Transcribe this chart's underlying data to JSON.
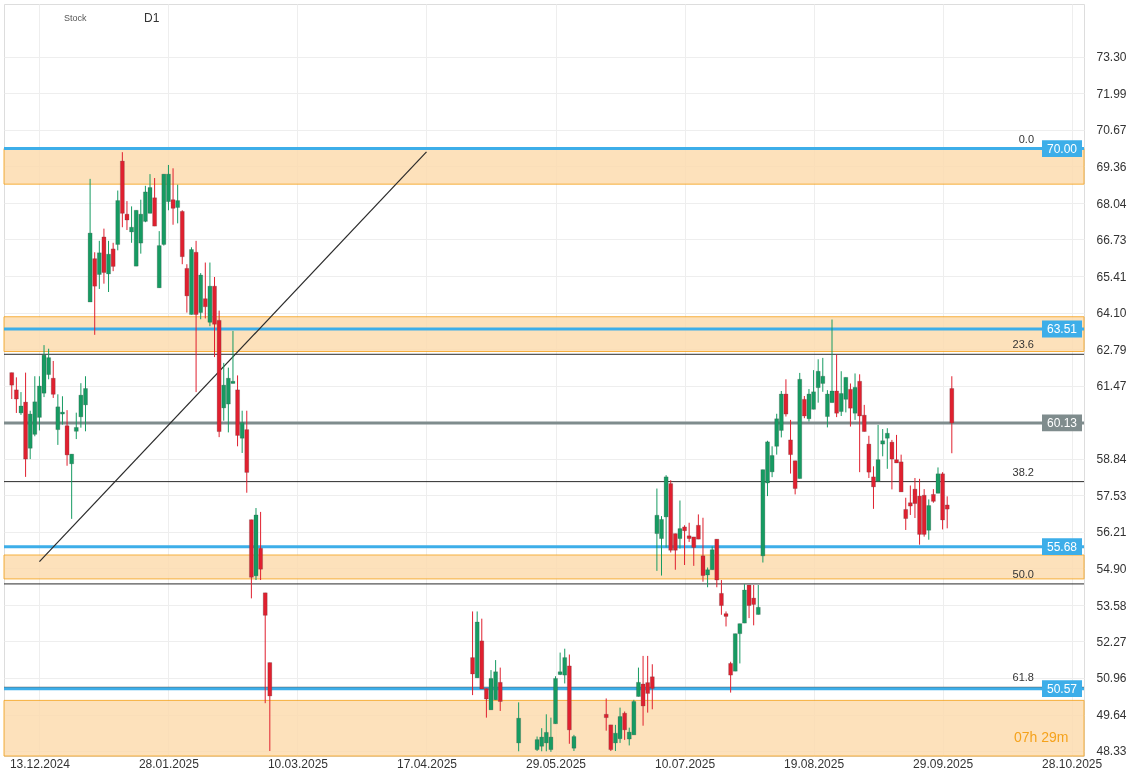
{
  "chart_data": {
    "type": "candlestick",
    "categories": [
      null,
      null,
      null,
      null,
      null,
      null,
      "13.12.2024",
      null,
      null,
      null,
      null,
      null,
      null,
      null,
      null,
      null,
      null,
      null,
      null,
      null,
      null,
      null,
      null,
      null,
      null,
      null,
      null,
      null,
      null,
      null,
      null,
      null,
      null,
      null,
      "28.01.2025",
      null,
      null,
      null,
      null,
      null,
      null,
      null,
      null,
      null,
      null,
      null,
      null,
      null,
      null,
      null,
      null,
      null,
      null,
      null,
      null,
      null,
      null,
      null,
      null,
      null,
      null,
      null,
      "10.03.2025",
      null,
      null,
      null,
      null,
      null,
      null,
      null,
      null,
      null,
      null,
      null,
      null,
      null,
      null,
      null,
      null,
      null,
      null,
      null,
      null,
      null,
      null,
      null,
      null,
      null,
      null,
      null,
      "17.04.2025",
      null,
      null,
      null,
      null,
      null,
      null,
      null,
      null,
      null,
      null,
      null,
      null,
      null,
      null,
      null,
      null,
      null,
      null,
      null,
      null,
      null,
      null,
      null,
      null,
      null,
      null,
      null,
      "29.05.2025",
      null,
      null,
      null,
      null,
      null,
      null,
      null,
      null,
      null,
      null,
      null,
      null,
      null,
      null,
      null,
      null,
      null,
      null,
      null,
      null,
      null,
      null,
      null,
      null,
      null,
      null,
      null,
      "10.07.2025",
      null,
      null,
      null,
      null,
      null,
      null,
      null,
      null,
      null,
      null,
      null,
      null,
      null,
      null,
      null,
      null,
      null,
      null,
      null,
      null,
      null,
      null,
      null,
      null,
      null,
      null,
      null,
      "19.08.2025",
      null,
      null,
      null,
      null,
      null,
      null,
      null,
      null,
      null,
      null,
      null,
      null,
      null,
      null,
      null,
      null,
      null,
      null,
      null,
      null,
      null,
      null,
      null,
      null,
      null,
      null,
      null,
      "29.09.2025",
      null,
      null,
      null,
      null,
      null,
      null,
      null,
      null,
      null,
      null,
      null,
      null,
      null,
      null,
      null,
      null,
      null,
      null,
      null,
      null,
      null,
      null,
      null,
      null,
      null,
      null,
      null,
      "28.10.2025",
      null
    ],
    "ohlc": [
      [
        61.94,
        61.94,
        60.99,
        61.49
      ],
      [
        61.32,
        61.77,
        60.49,
        60.99
      ],
      [
        60.49,
        61.24,
        60.42,
        60.74
      ],
      [
        60.88,
        61.94,
        58.19,
        58.83
      ],
      [
        59.22,
        60.57,
        58.83,
        60.45
      ],
      [
        59.72,
        61.81,
        59.65,
        60.89
      ],
      [
        60.33,
        61.81,
        59.86,
        61.46
      ],
      [
        61.2,
        62.93,
        61.06,
        62.57
      ],
      [
        61.87,
        62.8,
        61.7,
        62.48
      ],
      [
        61.74,
        62.36,
        61.03,
        61.16
      ],
      [
        59.89,
        61.16,
        59.34,
        60.71
      ],
      [
        60.45,
        61.09,
        60.07,
        60.52
      ],
      [
        60.03,
        60.59,
        58.59,
        58.98
      ],
      [
        58.66,
        59.01,
        56.68,
        59.01
      ],
      [
        59.83,
        60.5,
        59.55,
        59.97
      ],
      [
        60.35,
        61.56,
        59.96,
        61.13
      ],
      [
        60.78,
        61.81,
        59.83,
        61.37
      ],
      [
        64.48,
        68.91,
        64.48,
        66.96
      ],
      [
        66.04,
        66.27,
        63.3,
        65.05
      ],
      [
        65.47,
        66.68,
        64.95,
        66.25
      ],
      [
        66.82,
        67.12,
        65.14,
        65.54
      ],
      [
        65.49,
        66.68,
        64.84,
        66.2
      ],
      [
        66.39,
        66.61,
        65.59,
        65.76
      ],
      [
        66.55,
        68.49,
        66.34,
        68.13
      ],
      [
        69.55,
        69.87,
        67.17,
        67.67
      ],
      [
        67.64,
        68.11,
        67.07,
        67.43
      ],
      [
        67.0,
        67.92,
        66.61,
        67.17
      ],
      [
        65.77,
        67.78,
        65.77,
        67.78
      ],
      [
        66.6,
        68.16,
        66.22,
        67.64
      ],
      [
        67.38,
        68.66,
        67.35,
        68.44
      ],
      [
        67.67,
        69.08,
        67.67,
        68.6
      ],
      [
        68.23,
        68.94,
        67.21,
        67.21
      ],
      [
        64.99,
        67.03,
        64.99,
        66.51
      ],
      [
        66.55,
        69.08,
        66.51,
        69.08
      ],
      [
        68.09,
        69.41,
        67.78,
        69.08
      ],
      [
        68.16,
        69.29,
        67.26,
        67.85
      ],
      [
        67.88,
        68.7,
        67.31,
        68.13
      ],
      [
        67.74,
        67.78,
        65.84,
        66.11
      ],
      [
        65.69,
        65.84,
        64.1,
        64.7
      ],
      [
        64.03,
        66.45,
        64.03,
        66.37
      ],
      [
        66.27,
        66.68,
        61.24,
        64.03
      ],
      [
        64.1,
        65.52,
        63.86,
        65.45
      ],
      [
        64.6,
        65.9,
        63.89,
        64.31
      ],
      [
        63.75,
        65.9,
        63.61,
        65.05
      ],
      [
        65.05,
        65.38,
        62.5,
        63.68
      ],
      [
        63.82,
        64.17,
        59.62,
        59.82
      ],
      [
        60.67,
        62.29,
        60.21,
        61.49
      ],
      [
        60.81,
        62.12,
        59.79,
        61.74
      ],
      [
        61.55,
        63.44,
        61.55,
        61.63
      ],
      [
        61.32,
        61.84,
        59.29,
        59.68
      ],
      [
        59.58,
        60.57,
        59.05,
        60.14
      ],
      [
        59.89,
        60.57,
        57.62,
        58.35
      ],
      [
        56.65,
        56.65,
        53.82,
        54.58
      ],
      [
        54.63,
        57.07,
        54.48,
        56.82
      ],
      [
        55.62,
        56.93,
        54.48,
        54.87
      ],
      [
        54.02,
        54.02,
        50.05,
        53.21
      ],
      [
        51.51,
        51.51,
        48.33,
        50.31
      ],
      null,
      null,
      null,
      null,
      null,
      null,
      null,
      null,
      null,
      null,
      null,
      null,
      null,
      null,
      null,
      null,
      null,
      null,
      null,
      null,
      null,
      null,
      null,
      null,
      null,
      null,
      null,
      null,
      null,
      null,
      null,
      null,
      null,
      null,
      null,
      null,
      null,
      null,
      null,
      null,
      null,
      null,
      null,
      [
        51.69,
        53.35,
        50.34,
        51.1
      ],
      [
        50.96,
        53.35,
        50.96,
        52.97
      ],
      [
        52.29,
        53.09,
        50.56,
        50.56
      ],
      [
        50.58,
        50.58,
        49.53,
        50.2
      ],
      [
        49.81,
        51.24,
        49.81,
        50.94
      ],
      [
        50.17,
        51.6,
        50.17,
        51.18
      ],
      [
        50.8,
        51.33,
        49.77,
        50.11
      ],
      null,
      null,
      null,
      [
        48.62,
        50.08,
        48.32,
        49.51
      ],
      null,
      null,
      null,
      [
        48.38,
        48.85,
        48.33,
        48.74
      ],
      [
        48.5,
        49.15,
        48.32,
        48.83
      ],
      [
        48.62,
        49.65,
        48.32,
        49.0
      ],
      [
        48.38,
        49.53,
        48.3,
        48.83
      ],
      [
        49.31,
        51.02,
        49.31,
        50.94
      ],
      [
        51.08,
        51.87,
        51.06,
        51.18
      ],
      [
        51.06,
        52.01,
        50.76,
        51.69
      ],
      [
        51.39,
        51.8,
        48.59,
        49.09
      ],
      [
        48.43,
        48.91,
        48.33,
        48.85
      ],
      null,
      null,
      null,
      null,
      null,
      null,
      [
        49.65,
        50.22,
        49.06,
        49.53
      ],
      [
        49.27,
        49.27,
        48.33,
        48.38
      ],
      [
        48.62,
        49.27,
        48.33,
        48.97
      ],
      [
        48.77,
        49.89,
        48.62,
        49.57
      ],
      [
        49.69,
        49.75,
        48.73,
        49.09
      ],
      [
        48.76,
        49.17,
        48.53,
        49.01
      ],
      [
        48.91,
        50.17,
        48.91,
        50.11
      ],
      [
        50.29,
        51.33,
        50.29,
        50.8
      ],
      [
        50.74,
        51.75,
        49.24,
        49.95
      ],
      [
        50.79,
        51.75,
        49.71,
        50.4
      ],
      [
        51.0,
        51.45,
        49.83,
        50.58
      ],
      [
        56.15,
        57.77,
        54.81,
        56.81
      ],
      [
        55.97,
        56.78,
        54.64,
        56.66
      ],
      [
        56.75,
        58.25,
        55.65,
        58.19
      ],
      [
        57.95,
        58.07,
        55.47,
        55.55
      ],
      [
        56.15,
        56.15,
        54.85,
        55.55
      ],
      [
        55.97,
        57.34,
        55.61,
        56.33
      ],
      [
        56.39,
        56.45,
        55.02,
        56.25
      ],
      [
        56.07,
        56.54,
        55.85,
        55.97
      ],
      [
        56.03,
        56.03,
        54.99,
        55.65
      ],
      [
        56.45,
        56.84,
        55.95,
        55.95
      ],
      [
        55.35,
        56.72,
        54.42,
        54.64
      ],
      [
        54.66,
        54.93,
        54.22,
        54.85
      ],
      [
        54.85,
        55.69,
        54.85,
        55.57
      ],
      [
        55.95,
        55.95,
        54.22,
        54.48
      ],
      [
        54.0,
        54.48,
        53.23,
        53.56
      ],
      [
        53.27,
        53.35,
        52.81,
        53.17
      ],
      [
        51.48,
        51.54,
        50.43,
        51.06
      ],
      [
        51.2,
        52.55,
        51.2,
        52.55
      ],
      [
        52.55,
        52.91,
        51.48,
        52.91
      ],
      [
        52.93,
        54.33,
        52.93,
        54.12
      ],
      [
        54.3,
        54.3,
        53.11,
        53.56
      ],
      [
        53.83,
        54.3,
        52.85,
        53.6
      ],
      [
        53.24,
        54.3,
        53.24,
        53.5
      ],
      [
        55.35,
        58.45,
        55.11,
        58.45
      ],
      [
        57.97,
        59.49,
        57.5,
        59.45
      ],
      [
        58.37,
        59.29,
        58.18,
        58.96
      ],
      [
        59.29,
        60.46,
        58.99,
        60.28
      ],
      [
        59.86,
        61.28,
        59.61,
        61.17
      ],
      [
        61.17,
        61.7,
        60.36,
        60.45
      ],
      [
        59.52,
        60.24,
        58.31,
        58.99
      ],
      [
        58.77,
        58.77,
        57.56,
        57.77
      ],
      [
        58.13,
        61.93,
        58.13,
        61.7
      ],
      [
        60.98,
        61.1,
        60.3,
        60.38
      ],
      [
        60.28,
        61.35,
        60.18,
        61.17
      ],
      [
        60.62,
        62.03,
        60.62,
        61.25
      ],
      [
        61.4,
        62.42,
        60.86,
        61.99
      ],
      [
        61.55,
        62.47,
        61.25,
        61.81
      ],
      [
        60.36,
        61.31,
        59.97,
        61.17
      ],
      [
        60.86,
        63.85,
        60.86,
        61.28
      ],
      [
        61.28,
        62.59,
        60.34,
        60.48
      ],
      [
        60.54,
        61.99,
        60.38,
        61.19
      ],
      [
        60.98,
        61.77,
        60.51,
        61.77
      ],
      [
        61.34,
        61.55,
        60.0,
        60.66
      ],
      [
        60.48,
        61.91,
        60.24,
        61.41
      ],
      [
        61.63,
        61.88,
        58.36,
        60.38
      ],
      [
        60.41,
        60.78,
        59.82,
        59.82
      ],
      [
        59.37,
        59.67,
        58.15,
        58.36
      ],
      [
        58.19,
        58.57,
        57.04,
        57.83
      ],
      [
        58.03,
        60.06,
        58.03,
        58.81
      ],
      [
        59.37,
        59.91,
        58.93,
        59.49
      ],
      [
        59.58,
        59.94,
        58.48,
        59.76
      ],
      [
        59.44,
        59.52,
        57.74,
        58.83
      ],
      [
        58.81,
        59.7,
        58.69,
        58.69
      ],
      [
        58.73,
        58.99,
        57.65,
        57.65
      ],
      [
        57.02,
        57.44,
        56.28,
        56.69
      ],
      [
        57.26,
        57.88,
        56.82,
        57.14
      ],
      [
        57.75,
        58.15,
        56.71,
        57.23
      ],
      [
        57.5,
        58.12,
        55.75,
        56.12
      ],
      [
        57.53,
        57.75,
        56.04,
        56.12
      ],
      [
        56.27,
        57.38,
        55.93,
        57.16
      ],
      [
        57.56,
        57.75,
        57.26,
        57.31
      ],
      [
        57.6,
        58.53,
        57.6,
        58.3
      ],
      [
        58.3,
        58.36,
        56.3,
        56.64
      ],
      [
        57.18,
        57.49,
        56.34,
        57.03
      ],
      [
        61.37,
        61.81,
        59.04,
        60.13
      ],
      null,
      null,
      null,
      null,
      null,
      null,
      null,
      null,
      null,
      null,
      null,
      null,
      null,
      null,
      null,
      null,
      null,
      null,
      null,
      null,
      null,
      null,
      null,
      null,
      null,
      null,
      null
    ],
    "series": [
      {
        "type": "line",
        "x": [
          "13.12.2024",
          "17.04.2025"
        ],
        "values": [
          55.14,
          69.88
        ],
        "color": "#2b2b2b"
      }
    ],
    "ylim": [
      48.15,
      75.2
    ],
    "yticks": [
      48.33,
      49.64,
      50.96,
      52.27,
      53.58,
      {
        "value": 54.9,
        "label": "54.90"
      },
      56.21,
      57.53,
      58.84,
      61.47,
      62.79,
      {
        "value": 64.1,
        "label": "64.10"
      },
      65.41,
      66.73,
      68.04,
      69.36,
      70.67,
      71.99,
      {
        "value": 73.3,
        "label": "73.30"
      }
    ],
    "grid": true,
    "ref_lines": [
      {
        "axis": "y",
        "value": 62.6
      },
      {
        "axis": "y",
        "value": 58.02
      },
      {
        "axis": "y",
        "value": 54.34
      },
      {
        "axis": "y",
        "value": 50.62
      },
      {
        "axis": "y",
        "value": 70.0,
        "label": "70.00",
        "color": "#3daee9"
      },
      {
        "axis": "y",
        "value": 63.51,
        "label": "63.51",
        "color": "#3daee9"
      },
      {
        "axis": "y",
        "value": 55.68,
        "label": "55.68",
        "color": "#3daee9"
      },
      {
        "axis": "y",
        "value": 50.57,
        "label": "50.57",
        "color": "#3daee9"
      },
      {
        "axis": "y",
        "value": 60.13,
        "label": "60.13",
        "color": "#7f8c8d"
      }
    ],
    "bands": [
      {
        "axis": "y",
        "from": 68.72,
        "to": 70.0,
        "color": "#fddcb0"
      },
      {
        "axis": "y",
        "from": 62.7,
        "to": 63.95,
        "color": "#fddcb0"
      },
      {
        "axis": "y",
        "from": 54.52,
        "to": 55.38,
        "color": "#fddcb0"
      },
      {
        "axis": "y",
        "from": 48.15,
        "to": 50.15,
        "color": "#fddcb0"
      }
    ],
    "annotations": [
      "Stock",
      "D1",
      "07h 29m",
      {
        "text": "0.0",
        "y": 70.0
      },
      {
        "text": "23.6",
        "y": 62.6
      },
      {
        "text": "38.2",
        "y": 58.02
      },
      {
        "text": "50.0",
        "y": 54.34
      },
      {
        "text": "61.8",
        "y": 50.62
      }
    ]
  }
}
